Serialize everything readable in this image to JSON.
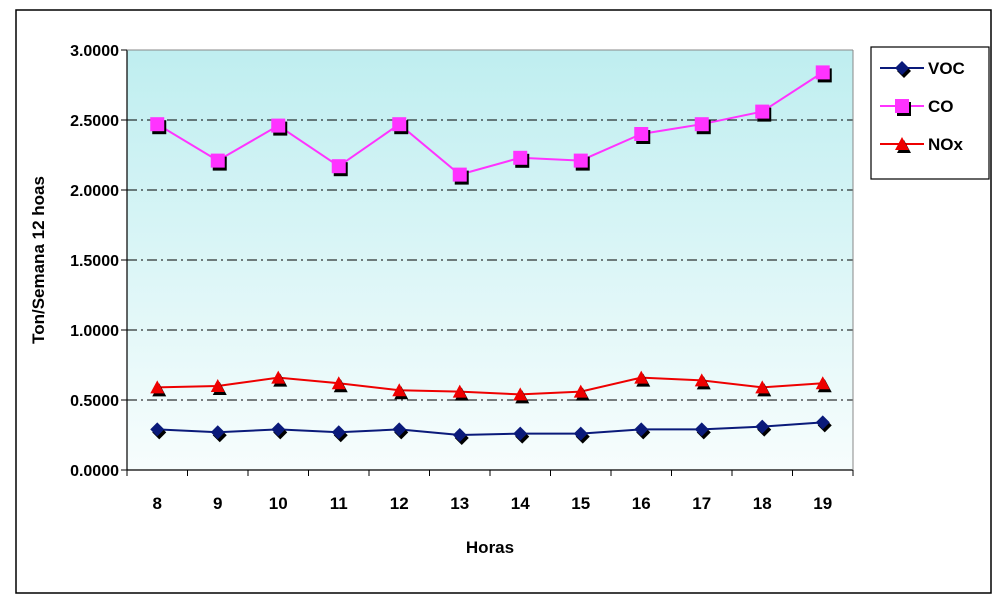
{
  "chart_data": {
    "type": "line",
    "title": "",
    "xlabel": "Horas",
    "ylabel": "Ton/Semana 12 hoas",
    "categories": [
      "8",
      "9",
      "10",
      "11",
      "12",
      "13",
      "14",
      "15",
      "16",
      "17",
      "18",
      "19"
    ],
    "yticks": [
      "0.0000",
      "0.5000",
      "1.0000",
      "1.5000",
      "2.0000",
      "2.5000",
      "3.0000"
    ],
    "ylim": [
      0,
      3
    ],
    "grid": "horizontal dash-dot",
    "legend_position": "right",
    "series": [
      {
        "name": "VOC",
        "marker": "diamond",
        "color": "#0a1a7a",
        "values": [
          0.29,
          0.27,
          0.29,
          0.27,
          0.29,
          0.25,
          0.26,
          0.26,
          0.29,
          0.29,
          0.31,
          0.34
        ]
      },
      {
        "name": "CO",
        "marker": "square",
        "color": "#ff33ff",
        "values": [
          2.47,
          2.21,
          2.46,
          2.17,
          2.47,
          2.11,
          2.23,
          2.21,
          2.4,
          2.47,
          2.56,
          2.84
        ]
      },
      {
        "name": "NOx",
        "marker": "triangle",
        "color": "#ee0000",
        "values": [
          0.59,
          0.6,
          0.66,
          0.62,
          0.57,
          0.56,
          0.54,
          0.56,
          0.66,
          0.64,
          0.59,
          0.62
        ]
      }
    ]
  }
}
